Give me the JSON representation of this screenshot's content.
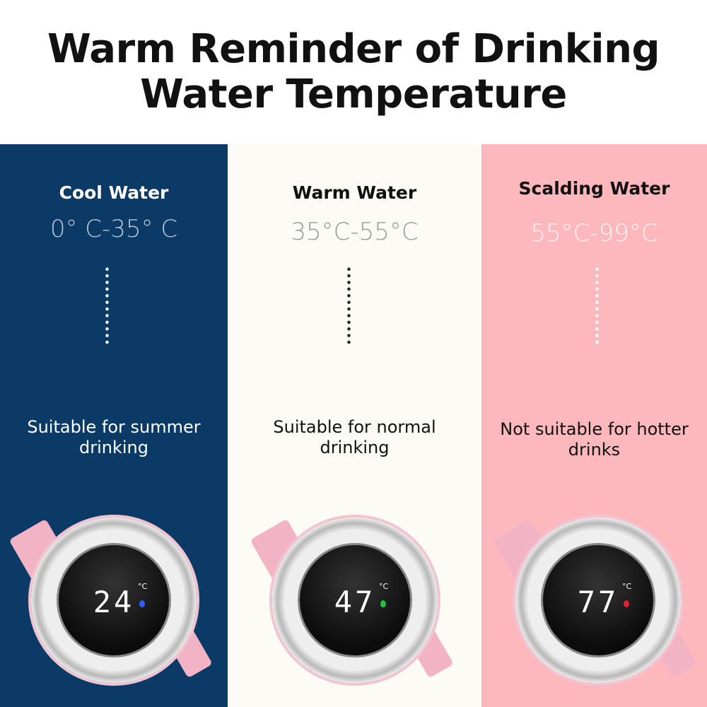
{
  "title_line1": "Warm Reminder of Drinking",
  "title_line2": "Water Temperature",
  "columns": [
    {
      "name": "Cool Water",
      "range": "0° C-35° C",
      "desc1": "Suitable for summer",
      "desc2": "drinking",
      "display": "24",
      "unit": "°C",
      "drop_color": "#2f5bff",
      "bg": "#0b3a66"
    },
    {
      "name": "Warm Water",
      "range": "35°C-55°C",
      "desc1": "Suitable for normal",
      "desc2": "drinking",
      "display": "47",
      "unit": "°C",
      "drop_color": "#22c040",
      "bg": "#fcfbf5"
    },
    {
      "name": "Scalding Water",
      "range": "55°C-99°C",
      "desc1": "Not suitable for hotter",
      "desc2": "drinks",
      "display": "77",
      "unit": "°C",
      "drop_color": "#e0202a",
      "bg": "#fdb8bd"
    }
  ]
}
